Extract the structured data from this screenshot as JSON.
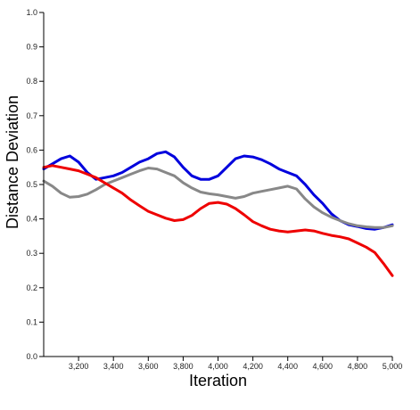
{
  "chart_data": {
    "type": "line",
    "title": "",
    "xlabel": "Iteration",
    "ylabel": "Distance Deviation",
    "xlim": [
      3000,
      5000
    ],
    "ylim": [
      0,
      1.0
    ],
    "grid": false,
    "x_ticks": [
      3200,
      3400,
      3600,
      3800,
      4000,
      4200,
      4400,
      4600,
      4800,
      5000
    ],
    "x_tick_labels": [
      "3,200",
      "3,400",
      "3,600",
      "3,800",
      "4,000",
      "4,200",
      "4,400",
      "4,600",
      "4,800",
      "5,000"
    ],
    "y_ticks": [
      0,
      0.1,
      0.2,
      0.3,
      0.4,
      0.5,
      0.6,
      0.7,
      0.8,
      0.9,
      1.0
    ],
    "y_tick_labels": [
      "0.0",
      "0.1",
      "0.2",
      "0.3",
      "0.4",
      "0.5",
      "0.6",
      "0.7",
      "0.8",
      "0.9",
      "1.0"
    ],
    "series": [
      {
        "color": "#0000dd",
        "x": [
          3000,
          3050,
          3100,
          3150,
          3200,
          3250,
          3300,
          3350,
          3400,
          3450,
          3500,
          3550,
          3600,
          3650,
          3700,
          3750,
          3800,
          3850,
          3900,
          3950,
          4000,
          4050,
          4100,
          4150,
          4200,
          4250,
          4300,
          4350,
          4400,
          4450,
          4500,
          4550,
          4600,
          4650,
          4700,
          4750,
          4800,
          4850,
          4900,
          4950,
          5000
        ],
        "values": [
          0.545,
          0.56,
          0.575,
          0.583,
          0.565,
          0.535,
          0.515,
          0.52,
          0.525,
          0.535,
          0.55,
          0.565,
          0.575,
          0.59,
          0.595,
          0.58,
          0.55,
          0.525,
          0.515,
          0.515,
          0.525,
          0.55,
          0.575,
          0.583,
          0.58,
          0.572,
          0.56,
          0.545,
          0.535,
          0.525,
          0.5,
          0.47,
          0.445,
          0.415,
          0.395,
          0.383,
          0.378,
          0.372,
          0.37,
          0.375,
          0.383
        ]
      },
      {
        "color": "#888888",
        "x": [
          3000,
          3050,
          3100,
          3150,
          3200,
          3250,
          3300,
          3350,
          3400,
          3450,
          3500,
          3550,
          3600,
          3650,
          3700,
          3750,
          3800,
          3850,
          3900,
          3950,
          4000,
          4050,
          4100,
          4150,
          4200,
          4250,
          4300,
          4350,
          4400,
          4450,
          4500,
          4550,
          4600,
          4650,
          4700,
          4750,
          4800,
          4850,
          4900,
          4950,
          5000
        ],
        "values": [
          0.51,
          0.495,
          0.475,
          0.463,
          0.465,
          0.472,
          0.485,
          0.5,
          0.51,
          0.52,
          0.53,
          0.54,
          0.548,
          0.545,
          0.535,
          0.525,
          0.505,
          0.49,
          0.478,
          0.473,
          0.47,
          0.465,
          0.46,
          0.465,
          0.475,
          0.48,
          0.485,
          0.49,
          0.495,
          0.487,
          0.458,
          0.435,
          0.418,
          0.405,
          0.395,
          0.386,
          0.38,
          0.377,
          0.375,
          0.375,
          0.38
        ]
      },
      {
        "color": "#ee0000",
        "x": [
          3000,
          3050,
          3100,
          3150,
          3200,
          3250,
          3300,
          3350,
          3400,
          3450,
          3500,
          3550,
          3600,
          3650,
          3700,
          3750,
          3800,
          3850,
          3900,
          3950,
          4000,
          4050,
          4100,
          4150,
          4200,
          4250,
          4300,
          4350,
          4400,
          4450,
          4500,
          4550,
          4600,
          4650,
          4700,
          4750,
          4800,
          4850,
          4900,
          4950,
          5000
        ],
        "values": [
          0.55,
          0.555,
          0.55,
          0.545,
          0.54,
          0.53,
          0.52,
          0.505,
          0.49,
          0.475,
          0.455,
          0.438,
          0.422,
          0.412,
          0.402,
          0.395,
          0.398,
          0.41,
          0.43,
          0.445,
          0.448,
          0.443,
          0.43,
          0.412,
          0.392,
          0.38,
          0.37,
          0.365,
          0.362,
          0.365,
          0.368,
          0.365,
          0.358,
          0.352,
          0.348,
          0.342,
          0.33,
          0.318,
          0.302,
          0.27,
          0.235
        ]
      }
    ]
  }
}
